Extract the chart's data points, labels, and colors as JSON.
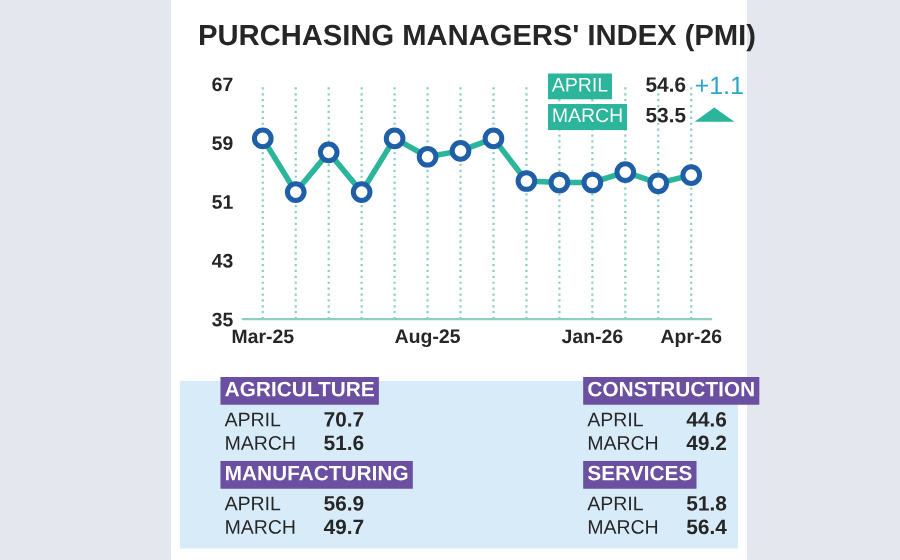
{
  "chart_data": [
    {
      "type": "line",
      "title": "PURCHASING MANAGERS' INDEX (PMI)",
      "categories": [
        "Mar-25",
        null,
        null,
        null,
        null,
        "Aug-25",
        null,
        null,
        null,
        null,
        "Jan-26",
        null,
        null,
        "Apr-26"
      ],
      "series": [
        {
          "color": "#2bb59a",
          "values": [
            59.6,
            52.3,
            57.7,
            52.3,
            59.6,
            57.1,
            57.9,
            59.6,
            53.8,
            53.6,
            53.6,
            55.0,
            53.5,
            54.6
          ]
        }
      ],
      "ylim": [
        35,
        67
      ],
      "yticks": [
        35,
        43,
        51,
        59,
        67
      ],
      "grid": "x",
      "marker": "circle",
      "line_style": "solid",
      "annotations": [
        "APRIL",
        "54.6",
        "MARCH",
        "53.5",
        "+1.1"
      ]
    },
    {
      "type": "other",
      "annotations": [
        "AGRICULTURE",
        "APRIL",
        "70.7",
        "MARCH",
        "51.6",
        "CONSTRUCTION",
        "APRIL",
        "44.6",
        "MARCH",
        "49.2",
        "MANUFACTURING",
        "APRIL",
        "56.9",
        "MARCH",
        "49.7",
        "SERVICES",
        "APRIL",
        "51.8",
        "MARCH",
        "56.4"
      ]
    }
  ]
}
